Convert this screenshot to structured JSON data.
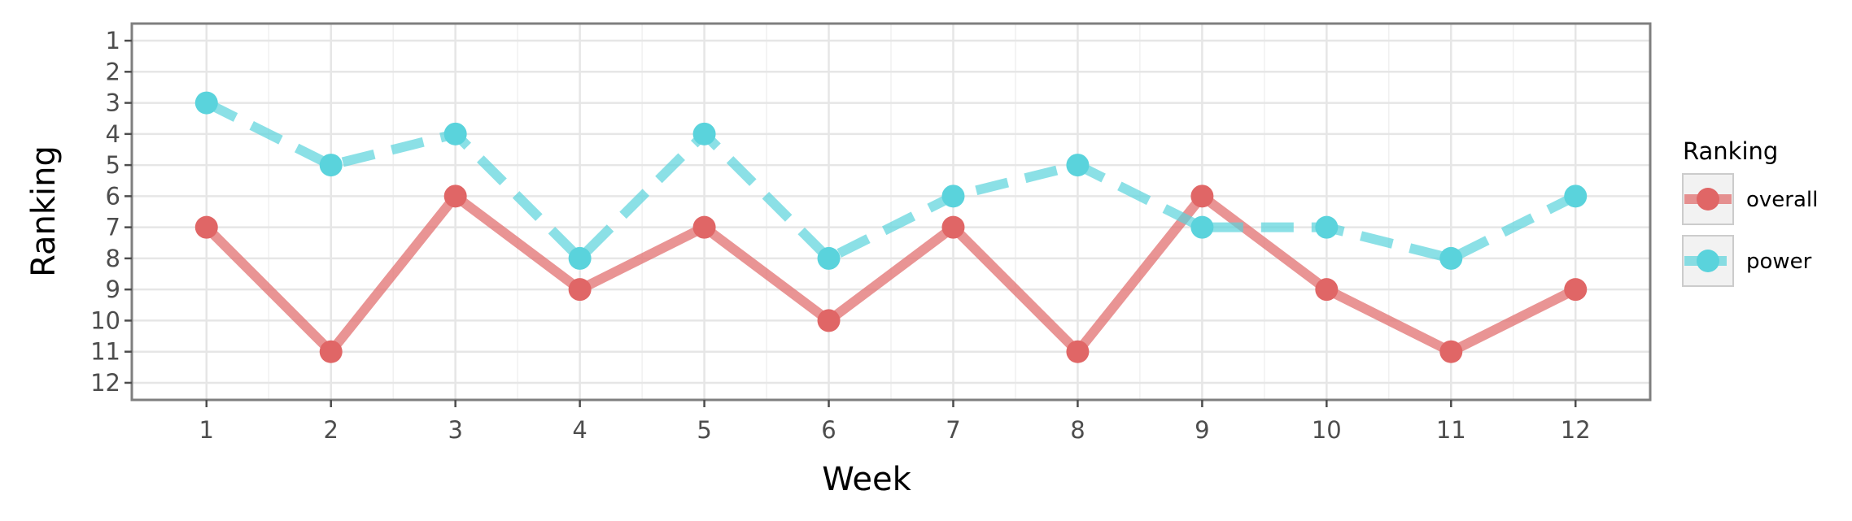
{
  "chart_data": {
    "type": "line",
    "xlabel": "Week",
    "ylabel": "Ranking",
    "x": [
      1,
      2,
      3,
      4,
      5,
      6,
      7,
      8,
      9,
      10,
      11,
      12
    ],
    "xlim": [
      0.4,
      12.6
    ],
    "ylim": [
      12.55,
      0.45
    ],
    "y_reversed": true,
    "yticks": [
      1,
      2,
      3,
      4,
      5,
      6,
      7,
      8,
      9,
      10,
      11,
      12
    ],
    "grid": true,
    "legend": {
      "title": "Ranking",
      "position": "right"
    },
    "series": [
      {
        "name": "overall",
        "values": [
          7,
          11,
          6,
          9,
          7,
          10,
          7,
          11,
          6,
          9,
          11,
          9
        ],
        "color": "#e06666",
        "line_style": "solid"
      },
      {
        "name": "power",
        "values": [
          3,
          5,
          4,
          8,
          4,
          8,
          6,
          5,
          7,
          7,
          8,
          6
        ],
        "color": "#5ad3dc",
        "line_style": "dashed"
      }
    ]
  }
}
